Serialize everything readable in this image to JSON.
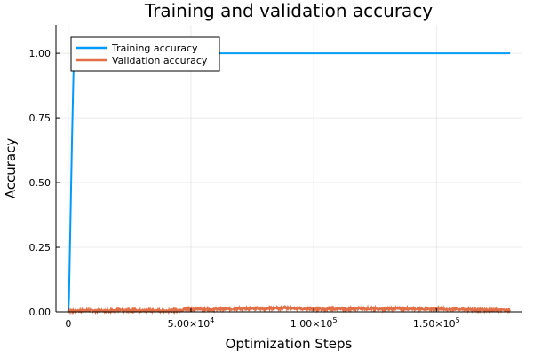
{
  "chart_data": {
    "type": "line",
    "title": "Training and validation accuracy",
    "xlabel": "Optimization Steps",
    "ylabel": "Accuracy",
    "xlim": [
      -5000,
      185000
    ],
    "ylim": [
      0,
      1.11
    ],
    "x_ticks": [
      0,
      50000,
      100000,
      150000
    ],
    "x_tick_labels": [
      {
        "mantissa": "0",
        "exp": ""
      },
      {
        "mantissa": "5.00×10",
        "exp": "4"
      },
      {
        "mantissa": "1.00×10",
        "exp": "5"
      },
      {
        "mantissa": "1.50×10",
        "exp": "5"
      }
    ],
    "y_ticks": [
      0,
      0.25,
      0.5,
      0.75,
      1.0
    ],
    "y_tick_labels": [
      "0.00",
      "0.25",
      "0.50",
      "0.75",
      "1.00"
    ],
    "grid": true,
    "legend_position": "top-left",
    "series": [
      {
        "name": "Training accuracy",
        "color": "#009af9",
        "x": [
          0,
          300,
          800,
          1500,
          2200,
          2700,
          180000
        ],
        "y": [
          0,
          0.05,
          0.3,
          0.65,
          0.95,
          1.0,
          1.0
        ]
      },
      {
        "name": "Validation accuracy",
        "color": "#e26f46",
        "x": [
          0,
          5000,
          10000,
          15000,
          20000,
          25000,
          30000,
          35000,
          40000,
          45000,
          50000,
          55000,
          60000,
          65000,
          70000,
          75000,
          80000,
          85000,
          90000,
          95000,
          100000,
          105000,
          110000,
          115000,
          120000,
          125000,
          130000,
          135000,
          140000,
          145000,
          150000,
          155000,
          160000,
          165000,
          170000,
          175000,
          180000
        ],
        "y": [
          0.004,
          0.005,
          0.006,
          0.005,
          0.007,
          0.006,
          0.005,
          0.006,
          0.005,
          0.007,
          0.012,
          0.009,
          0.01,
          0.011,
          0.012,
          0.013,
          0.012,
          0.014,
          0.016,
          0.012,
          0.01,
          0.011,
          0.012,
          0.011,
          0.013,
          0.012,
          0.011,
          0.012,
          0.013,
          0.011,
          0.012,
          0.01,
          0.011,
          0.009,
          0.008,
          0.007,
          0.008
        ]
      }
    ]
  }
}
